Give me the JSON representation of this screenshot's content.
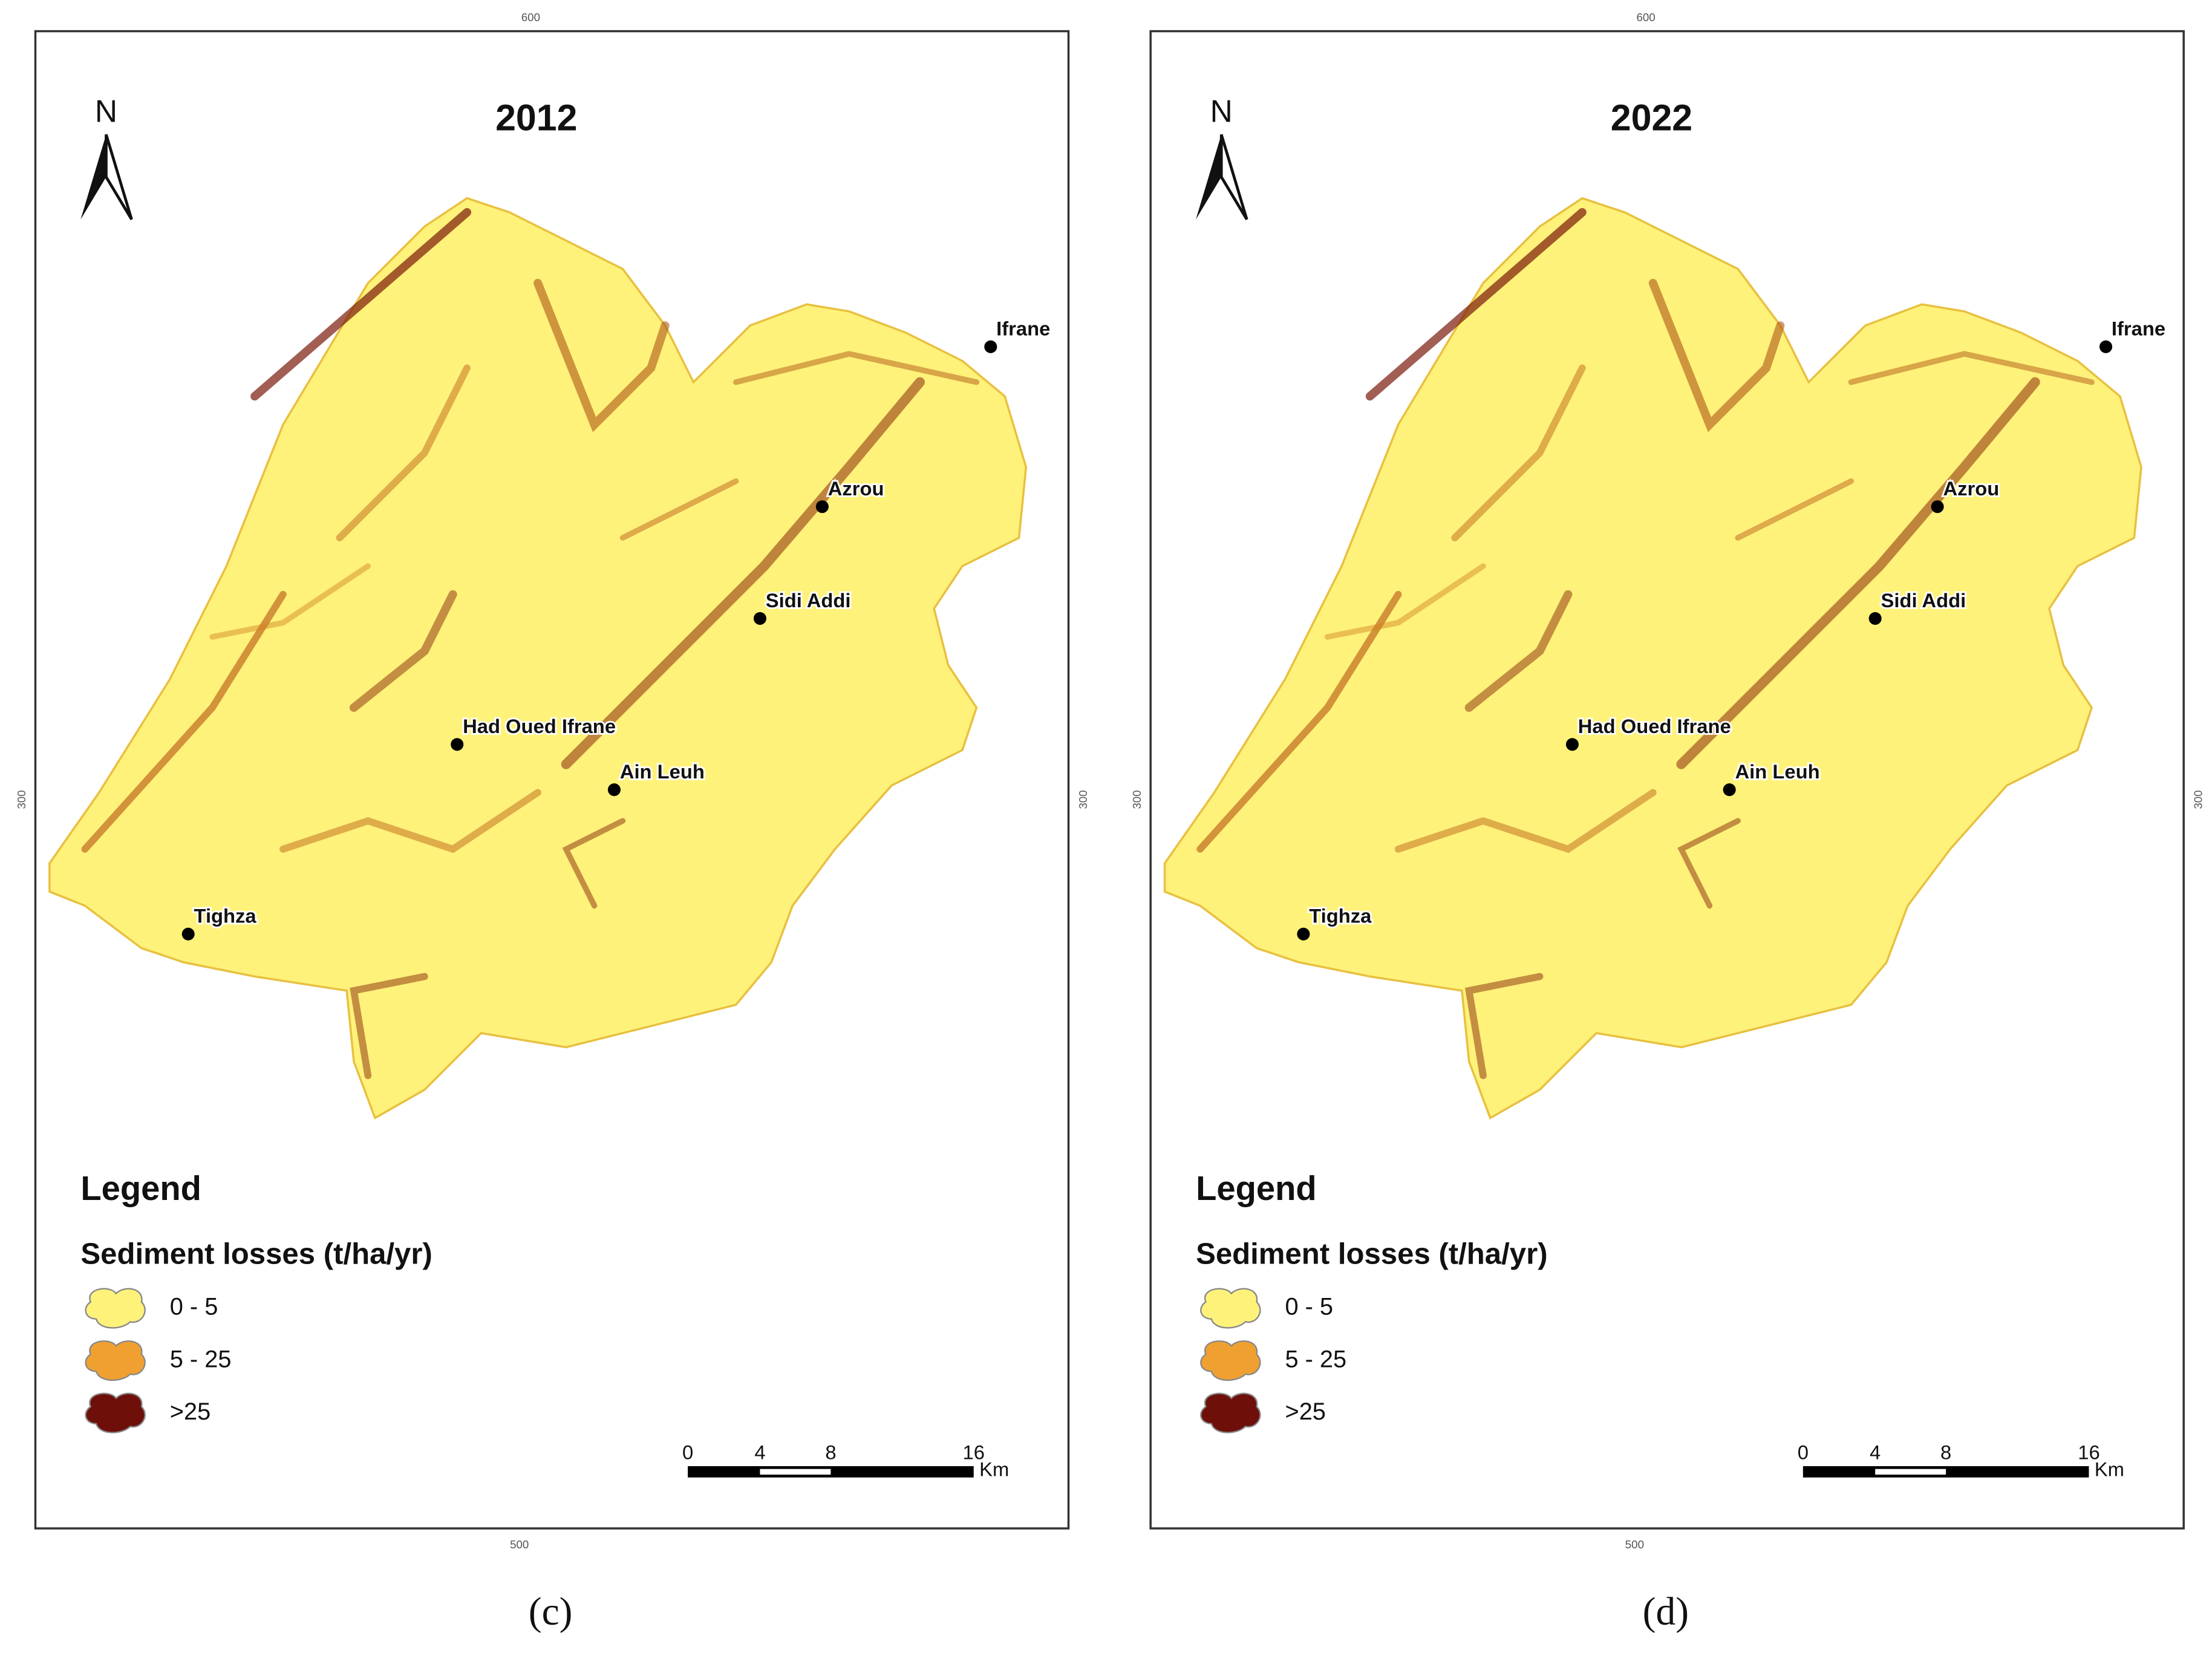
{
  "panels": [
    {
      "title": "2012",
      "north": "N",
      "caption": "(c)",
      "places": [
        "Ifrane",
        "Azrou",
        "Sidi Addi",
        "Had Oued Ifrane",
        "Ain Leuh",
        "Tighza"
      ],
      "legend": {
        "title": "Legend",
        "subtitle": "Sediment losses (t/ha/yr)",
        "items": [
          "0 - 5",
          "5 - 25",
          ">25"
        ]
      },
      "scale": {
        "labels": [
          "0",
          "4",
          "8",
          "16"
        ],
        "unit": "Km"
      },
      "coords": {
        "top": "600",
        "bottom": "500",
        "left": "300",
        "right": "300"
      }
    },
    {
      "title": "2022",
      "north": "N",
      "caption": "(d)",
      "places": [
        "Ifrane",
        "Azrou",
        "Sidi Addi",
        "Had Oued Ifrane",
        "Ain Leuh",
        "Tighza"
      ],
      "legend": {
        "title": "Legend",
        "subtitle": "Sediment losses (t/ha/yr)",
        "items": [
          "0 - 5",
          "5 - 25",
          ">25"
        ]
      },
      "scale": {
        "labels": [
          "0",
          "4",
          "8",
          "16"
        ],
        "unit": "Km"
      },
      "coords": {
        "top": "600",
        "bottom": "500",
        "left": "300",
        "right": "300"
      }
    }
  ]
}
